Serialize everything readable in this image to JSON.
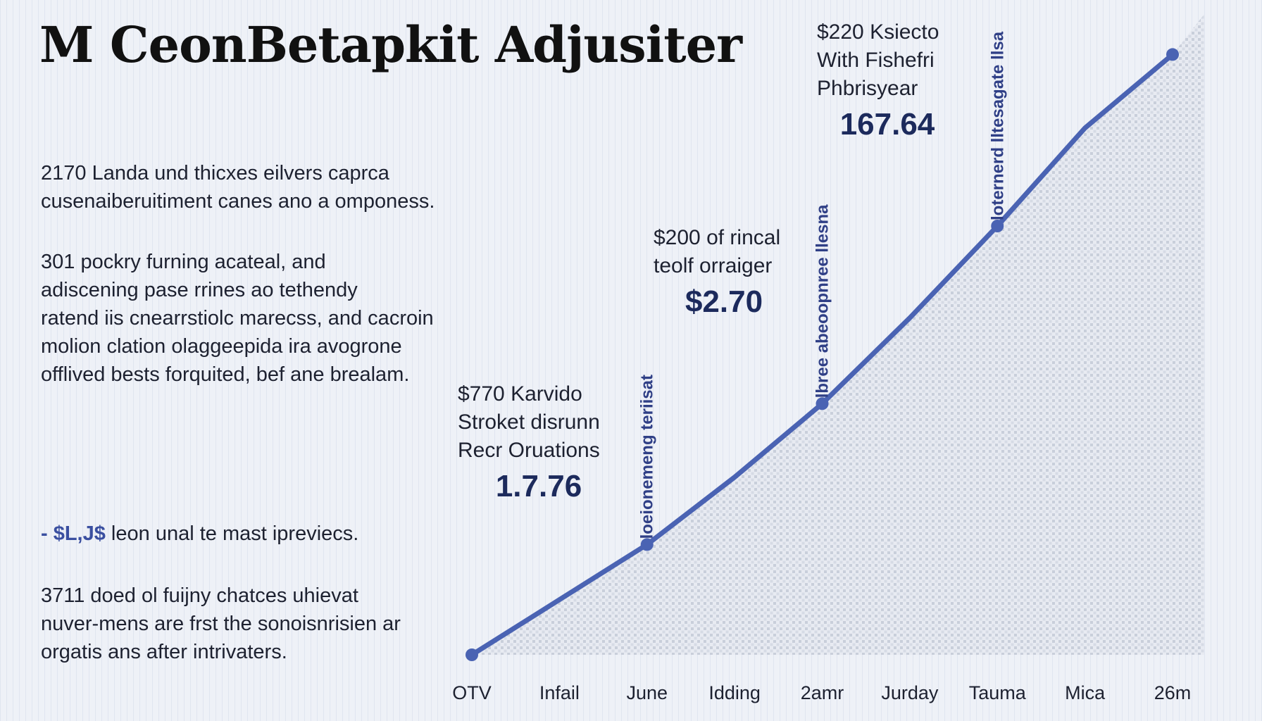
{
  "title": "M CeonBetapkit Adjusiter",
  "paragraphs": [
    {
      "lines": [
        "2170 Landa und thicxes eilvers caprca",
        "cusenaiberuitiment canes ano a omponess."
      ]
    },
    {
      "lines": [
        "301 pockry furning acateal, and",
        "adiscening pase rrines ao tethendy",
        "ratend iis cnearrstiolc marecss, and cacroin",
        "molion clation olaggeepida ira avogrone",
        "offlived bests forquited, bef ane brealam."
      ]
    },
    {
      "dollar": "- $L,J$",
      "text": " leon unal te mast ipreviecs."
    },
    {
      "lines": [
        "3711 doed ol fuijny chatces uhievat",
        "nuver-mens are frst the sonoisnrisien ar",
        "orgatis ans after intrivaters."
      ]
    }
  ],
  "callouts": [
    {
      "lines": [
        "$770 Karvido",
        "Stroket disrunn",
        "Recr Oruations"
      ],
      "value": "1.7.76"
    },
    {
      "lines": [
        "$200 of rincal",
        "teolf orraiger"
      ],
      "value": "$2.70"
    },
    {
      "lines": [
        "$220 Ksiecto",
        "With Fishefri",
        "Phbrisyear"
      ],
      "value": "167.64"
    }
  ],
  "vertical_labels": [
    "loeionemeng teriisat",
    "lbree abeoopnree llesna",
    "loternerd lltesagate llsa"
  ],
  "colors": {
    "line": "#4a63b3",
    "marker": "#4a63b3",
    "fill": "#c5cbd8"
  },
  "chart_data": {
    "type": "line",
    "categories": [
      "OTV",
      "Infail",
      "June",
      "Idding",
      "2amr",
      "Jurday",
      "Tauma",
      "Mica",
      "26m"
    ],
    "values": [
      0,
      0.9,
      1.8,
      2.9,
      4.1,
      5.5,
      7.0,
      8.6,
      9.8
    ],
    "highlighted_points": [
      2,
      4,
      6
    ],
    "title": "",
    "xlabel": "",
    "ylabel": "",
    "ylim": [
      0,
      10
    ],
    "grid": false
  }
}
